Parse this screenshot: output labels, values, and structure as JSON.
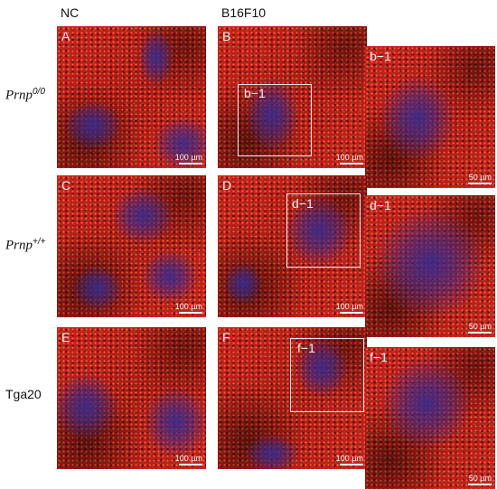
{
  "columns": {
    "nc": "NC",
    "b16f10": "B16F10"
  },
  "rows": [
    {
      "label": "Prnp",
      "sup": "0/0"
    },
    {
      "label": "Prnp",
      "sup": "+/+"
    },
    {
      "label": "Tga20",
      "sup": ""
    }
  ],
  "panels": {
    "A": {
      "letter": "A",
      "scale": "100 µm"
    },
    "B": {
      "letter": "B",
      "scale": "100 µm",
      "box_label": "b−1"
    },
    "b1": {
      "letter": "b−1",
      "scale": "50 µm"
    },
    "C": {
      "letter": "C",
      "scale": "100 µm"
    },
    "D": {
      "letter": "D",
      "scale": "100 µm",
      "box_label": "d−1"
    },
    "d1": {
      "letter": "d−1",
      "scale": "50 µm"
    },
    "E": {
      "letter": "E",
      "scale": "100 µm"
    },
    "F": {
      "letter": "F",
      "scale": "100 µm",
      "box_label": "f−1"
    },
    "f1": {
      "letter": "f−1",
      "scale": "50 µm"
    }
  },
  "colors": {
    "red_stain": "#c8231c",
    "blue_stain": "#3a2a8c",
    "green_stain": "#5a7a2a"
  }
}
